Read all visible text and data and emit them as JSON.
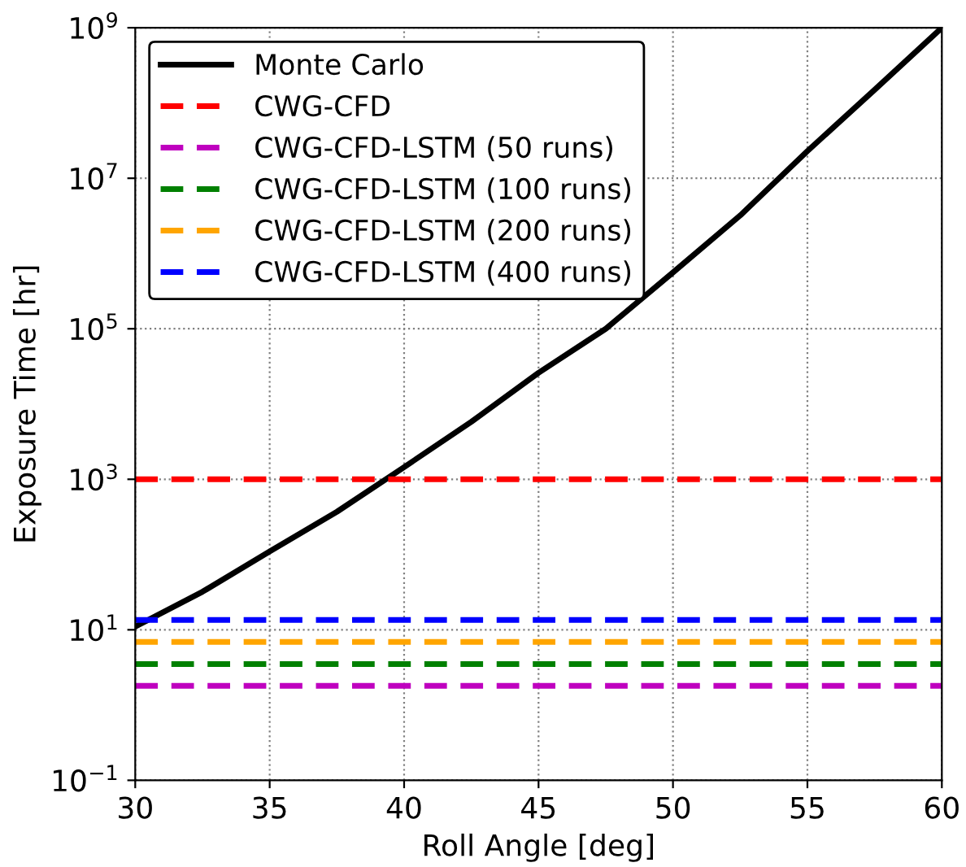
{
  "chart_data": {
    "type": "line",
    "xlabel": "Roll Angle [deg]",
    "ylabel": "Exposure Time [hr]",
    "x": [
      30,
      32.5,
      35,
      37.5,
      40,
      42.5,
      45,
      47.5,
      50,
      52.5,
      55,
      57.5,
      60
    ],
    "series": [
      {
        "name": "Monte Carlo",
        "color": "#000000",
        "line_style": "solid",
        "values": [
          11,
          32,
          110,
          370,
          1450,
          5800,
          26000,
          100000,
          560000,
          3200000,
          23000000,
          150000000,
          1000000000
        ]
      },
      {
        "name": "CWG-CFD",
        "color": "#ff0000",
        "line_style": "dashed",
        "values": [
          1000,
          1000,
          1000,
          1000,
          1000,
          1000,
          1000,
          1000,
          1000,
          1000,
          1000,
          1000,
          1000
        ]
      },
      {
        "name": "CWG-CFD-LSTM (50 runs)",
        "color": "#bf00bf",
        "line_style": "dashed",
        "values": [
          1.8,
          1.8,
          1.8,
          1.8,
          1.8,
          1.8,
          1.8,
          1.8,
          1.8,
          1.8,
          1.8,
          1.8,
          1.8
        ]
      },
      {
        "name": "CWG-CFD-LSTM (100 runs)",
        "color": "#008000",
        "line_style": "dashed",
        "values": [
          3.5,
          3.5,
          3.5,
          3.5,
          3.5,
          3.5,
          3.5,
          3.5,
          3.5,
          3.5,
          3.5,
          3.5,
          3.5
        ]
      },
      {
        "name": "CWG-CFD-LSTM (200 runs)",
        "color": "#ffa500",
        "line_style": "dashed",
        "values": [
          6.9,
          6.9,
          6.9,
          6.9,
          6.9,
          6.9,
          6.9,
          6.9,
          6.9,
          6.9,
          6.9,
          6.9,
          6.9
        ]
      },
      {
        "name": "CWG-CFD-LSTM (400 runs)",
        "color": "#0000ff",
        "line_style": "dashed",
        "values": [
          13.5,
          13.5,
          13.5,
          13.5,
          13.5,
          13.5,
          13.5,
          13.5,
          13.5,
          13.5,
          13.5,
          13.5,
          13.5
        ]
      }
    ],
    "log": "y",
    "xlim": [
      30,
      60
    ],
    "xticks": [
      30,
      35,
      40,
      45,
      50,
      55,
      60
    ],
    "ylim": [
      0.1,
      1000000000
    ],
    "yticks": [
      {
        "value": 0.1,
        "label": "10$^{−1}$"
      },
      {
        "value": 10,
        "label": "10$^{1}$"
      },
      {
        "value": 1000,
        "label": "10$^{3}$"
      },
      {
        "value": 100000,
        "label": "10$^{5}$"
      },
      {
        "value": 10000000,
        "label": "10$^{7}$"
      },
      {
        "value": 1000000000,
        "label": "10$^{9}$"
      }
    ],
    "grid": true,
    "legend": "top left"
  }
}
